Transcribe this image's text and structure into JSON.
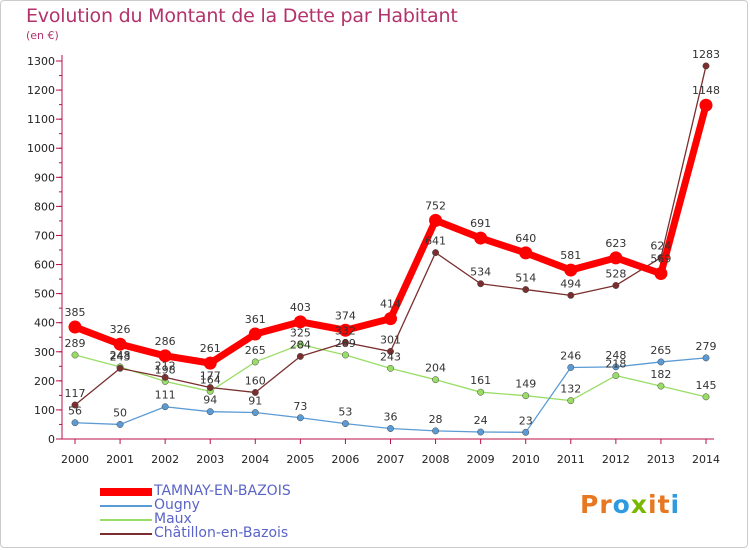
{
  "header": {
    "title": "Evolution du Montant de la Dette par Habitant",
    "unit": "(en €)"
  },
  "chart_data": {
    "type": "line",
    "title": "Evolution du Montant de la Dette par Habitant",
    "ylabel": "(en €)",
    "xlabel": "",
    "x": [
      2000,
      2001,
      2002,
      2003,
      2004,
      2005,
      2006,
      2007,
      2008,
      2009,
      2010,
      2011,
      2012,
      2013,
      2014
    ],
    "ylim": [
      0,
      1300
    ],
    "yticks": [
      0,
      100,
      200,
      300,
      400,
      500,
      600,
      700,
      800,
      900,
      1000,
      1100,
      1200,
      1300
    ],
    "grid": false,
    "legend_position": "bottom-left",
    "series": [
      {
        "name": "TAMNAY-EN-BAZOIS",
        "color": "#ff0000",
        "values": [
          385,
          326,
          286,
          261,
          361,
          403,
          374,
          414,
          752,
          691,
          640,
          581,
          623,
          569,
          1148
        ]
      },
      {
        "name": "Ougny",
        "color": "#5b9bd5",
        "values": [
          56,
          50,
          111,
          94,
          91,
          73,
          53,
          36,
          28,
          24,
          23,
          246,
          248,
          265,
          279
        ]
      },
      {
        "name": "Maux",
        "color": "#99dd66",
        "values": [
          289,
          248,
          198,
          164,
          265,
          325,
          289,
          243,
          204,
          161,
          149,
          132,
          218,
          182,
          145
        ]
      },
      {
        "name": "Châtillon-en-Bazois",
        "color": "#7a2e2e",
        "values": [
          117,
          243,
          212,
          177,
          160,
          284,
          332,
          301,
          641,
          534,
          514,
          494,
          528,
          624,
          1283
        ]
      }
    ]
  },
  "logo": {
    "letters": [
      "P",
      "r",
      "o",
      "x",
      "i",
      "t",
      "i"
    ],
    "colors": [
      "#e87722",
      "#e87722",
      "#2e9be0",
      "#7ab800",
      "#e87722",
      "#e87722",
      "#2e9be0"
    ]
  }
}
